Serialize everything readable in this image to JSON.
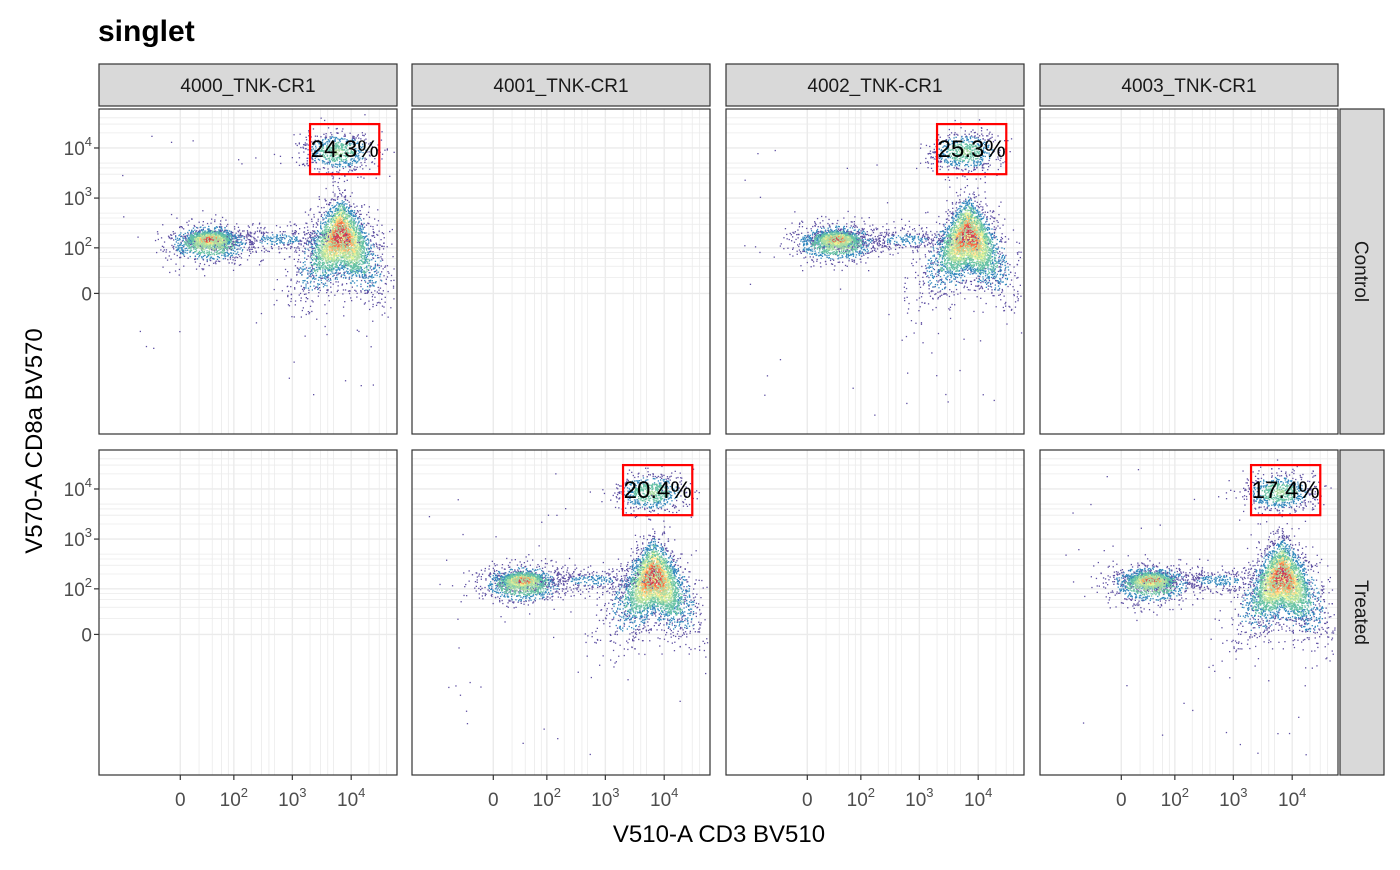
{
  "chart_data": {
    "type": "scatter",
    "title": "singlet",
    "xlabel": "V510-A CD3 BV510",
    "ylabel": "V570-A CD8a BV570",
    "x_scale": "biexponential",
    "y_scale": "biexponential",
    "grid": true,
    "legend": "none",
    "columns": [
      "4000_TNK-CR1",
      "4001_TNK-CR1",
      "4002_TNK-CR1",
      "4003_TNK-CR1"
    ],
    "rows": [
      "Control",
      "Treated"
    ],
    "x_ticks": [
      {
        "value": 0,
        "label": "0"
      },
      {
        "value": 100,
        "label": "10",
        "exp": "2"
      },
      {
        "value": 1000,
        "label": "10",
        "exp": "3"
      },
      {
        "value": 10000,
        "label": "10",
        "exp": "4"
      }
    ],
    "y_ticks": [
      {
        "value": 0,
        "label": "0"
      },
      {
        "value": 100,
        "label": "10",
        "exp": "2"
      },
      {
        "value": 1000,
        "label": "10",
        "exp": "3"
      },
      {
        "value": 10000,
        "label": "10",
        "exp": "4"
      }
    ],
    "panels": [
      {
        "column": "4000_TNK-CR1",
        "row": "Control",
        "has_data": true,
        "gate_label": "24.3%",
        "gate": {
          "x": [
            2000,
            30000
          ],
          "y": [
            3000,
            30000
          ]
        }
      },
      {
        "column": "4001_TNK-CR1",
        "row": "Control",
        "has_data": false
      },
      {
        "column": "4002_TNK-CR1",
        "row": "Control",
        "has_data": true,
        "gate_label": "25.3%",
        "gate": {
          "x": [
            2000,
            30000
          ],
          "y": [
            3000,
            30000
          ]
        }
      },
      {
        "column": "4003_TNK-CR1",
        "row": "Control",
        "has_data": false
      },
      {
        "column": "4000_TNK-CR1",
        "row": "Treated",
        "has_data": false
      },
      {
        "column": "4001_TNK-CR1",
        "row": "Treated",
        "has_data": true,
        "gate_label": "20.4%",
        "gate": {
          "x": [
            2000,
            30000
          ],
          "y": [
            3000,
            30000
          ]
        }
      },
      {
        "column": "4002_TNK-CR1",
        "row": "Treated",
        "has_data": false
      },
      {
        "column": "4003_TNK-CR1",
        "row": "Treated",
        "has_data": true,
        "gate_label": "17.4%",
        "gate": {
          "x": [
            2000,
            30000
          ],
          "y": [
            3000,
            30000
          ]
        }
      }
    ],
    "colors": {
      "gate": "#ff0000",
      "strip_fill": "#d9d9d9",
      "panel_border": "#333333",
      "grid": "#ebebeb",
      "density_palette": [
        "#5e4fa2",
        "#3288bd",
        "#66c2a5",
        "#abdda4",
        "#e6f598",
        "#fee08b",
        "#fdae61",
        "#f46d43",
        "#d53e4f"
      ]
    }
  }
}
